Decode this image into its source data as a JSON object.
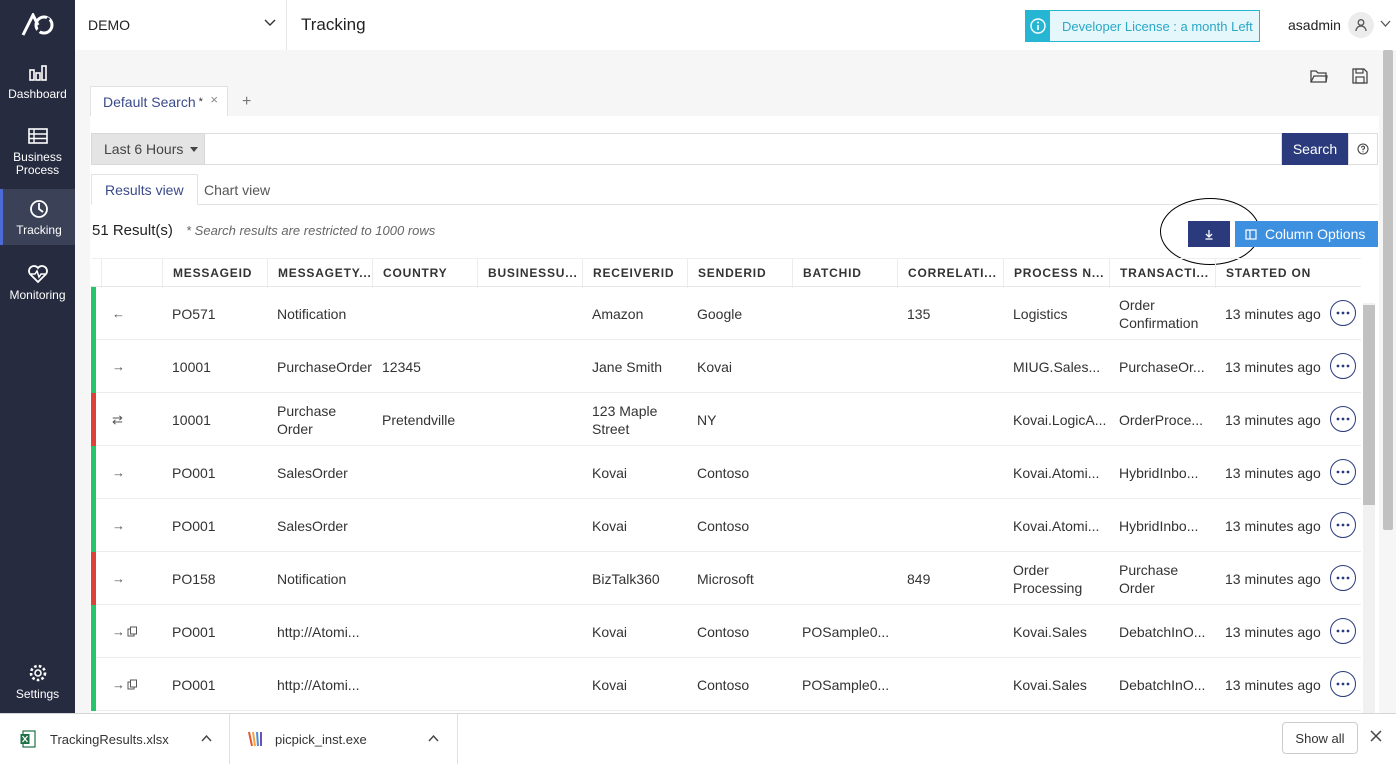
{
  "sidebar": {
    "logo": "logo-icon",
    "items": [
      {
        "label": "Dashboard",
        "icon": "bar-chart-icon"
      },
      {
        "label": "Business Process",
        "icon": "list-icon"
      },
      {
        "label": "Tracking",
        "icon": "clock-icon",
        "active": true
      },
      {
        "label": "Monitoring",
        "icon": "heart-pulse-icon"
      },
      {
        "label": "Settings",
        "icon": "gear-icon"
      }
    ]
  },
  "header": {
    "environment": "DEMO",
    "title": "Tracking",
    "license": "Developer License : a month Left",
    "user": "asadmin"
  },
  "search": {
    "tab_label": "Default Search",
    "tab_modified": "*",
    "tab_close": "×",
    "add_tab": "+",
    "time_range": "Last 6 Hours",
    "query": "",
    "button": "Search"
  },
  "views": {
    "results": "Results view",
    "chart": "Chart view"
  },
  "results": {
    "count": "51 Result(s)",
    "note": "* Search results are restricted to 1000 rows",
    "column_options": "Column Options"
  },
  "table": {
    "headers": [
      "MESSAGEID",
      "MESSAGETY...",
      "COUNTRY",
      "BUSINESSU...",
      "RECEIVERID",
      "SENDERID",
      "BATCHID",
      "CORRELATI...",
      "PROCESS N...",
      "TRANSACTI...",
      "STARTED ON"
    ],
    "rows": [
      {
        "status": "#27c46b",
        "dir": "←",
        "batch": false,
        "cells": [
          "PO571",
          "Notification",
          "",
          "",
          "Amazon",
          "Google",
          "",
          "135",
          "Logistics",
          "Order Confirmation",
          "13 minutes ago"
        ]
      },
      {
        "status": "#27c46b",
        "dir": "→",
        "batch": false,
        "cells": [
          "10001",
          "PurchaseOrder",
          "12345",
          "",
          "Jane Smith",
          "Kovai",
          "",
          "",
          "MIUG.Sales...",
          "PurchaseOr...",
          "13 minutes ago"
        ]
      },
      {
        "status": "#e0403a",
        "dir": "⇄",
        "batch": false,
        "cells": [
          "10001",
          "Purchase Order",
          "Pretendville",
          "",
          "123 Maple Street",
          "NY",
          "",
          "",
          "Kovai.LogicA...",
          "OrderProce...",
          "13 minutes ago"
        ]
      },
      {
        "status": "#27c46b",
        "dir": "→",
        "batch": false,
        "cells": [
          "PO001",
          "SalesOrder",
          "",
          "",
          "Kovai",
          "Contoso",
          "",
          "",
          "Kovai.Atomi...",
          "HybridInbo...",
          "13 minutes ago"
        ]
      },
      {
        "status": "#27c46b",
        "dir": "→",
        "batch": false,
        "cells": [
          "PO001",
          "SalesOrder",
          "",
          "",
          "Kovai",
          "Contoso",
          "",
          "",
          "Kovai.Atomi...",
          "HybridInbo...",
          "13 minutes ago"
        ]
      },
      {
        "status": "#e0403a",
        "dir": "→",
        "batch": false,
        "cells": [
          "PO158",
          "Notification",
          "",
          "",
          "BizTalk360",
          "Microsoft",
          "",
          "849",
          "Order Processing",
          "Purchase Order",
          "13 minutes ago"
        ]
      },
      {
        "status": "#27c46b",
        "dir": "→",
        "batch": true,
        "cells": [
          "PO001",
          "http://Atomi...",
          "",
          "",
          "Kovai",
          "Contoso",
          "POSample0...",
          "",
          "Kovai.Sales",
          "DebatchInO...",
          "13 minutes ago"
        ]
      },
      {
        "status": "#27c46b",
        "dir": "→",
        "batch": true,
        "cells": [
          "PO001",
          "http://Atomi...",
          "",
          "",
          "Kovai",
          "Contoso",
          "POSample0...",
          "",
          "Kovai.Sales",
          "DebatchInO...",
          "13 minutes ago"
        ]
      }
    ]
  },
  "downloads": {
    "items": [
      {
        "name": "TrackingResults.xlsx",
        "icon": "excel-file-icon"
      },
      {
        "name": "picpick_inst.exe",
        "icon": "picpick-icon"
      }
    ],
    "show_all": "Show all"
  },
  "colors": {
    "sidebar": "#262b3f",
    "primary": "#2a3a7d",
    "accent": "#3d8fe0",
    "success": "#27c46b",
    "error": "#e0403a",
    "license": "#26b6d3"
  }
}
